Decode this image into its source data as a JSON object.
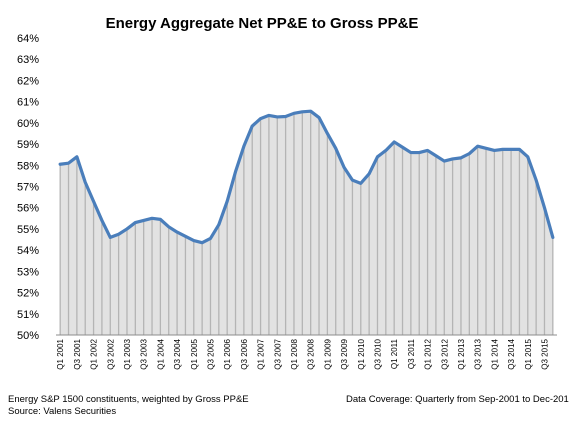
{
  "chart_data": {
    "type": "area",
    "title": "Energy Aggregate Net PP&E to Gross PP&E",
    "xlabel": "",
    "ylabel": "",
    "ylim": [
      50,
      64
    ],
    "y_ticks": [
      "64%",
      "63%",
      "62%",
      "61%",
      "60%",
      "59%",
      "58%",
      "57%",
      "56%",
      "55%",
      "54%",
      "53%",
      "52%",
      "51%",
      "50%"
    ],
    "x_tick_labels": [
      "Q1 2001",
      "Q3 2001",
      "Q1 2002",
      "Q3 2002",
      "Q1 2003",
      "Q3 2003",
      "Q1 2004",
      "Q3 2004",
      "Q1 2005",
      "Q3 2005",
      "Q1 2006",
      "Q3 2006",
      "Q1 2007",
      "Q3 2007",
      "Q1 2008",
      "Q3 2008",
      "Q1 2009",
      "Q3 2009",
      "Q1 2010",
      "Q3 2010",
      "Q1 2011",
      "Q3 2011",
      "Q1 2012",
      "Q3 2012",
      "Q1 2013",
      "Q3 2013",
      "Q1 2014",
      "Q3 2014",
      "Q1 2015",
      "Q3 2015"
    ],
    "grid": false,
    "series": [
      {
        "values": [
          58.05,
          58.1,
          58.4,
          57.2,
          56.3,
          55.4,
          54.6,
          54.75,
          55.0,
          55.3,
          55.4,
          55.5,
          55.45,
          55.1,
          54.85,
          54.65,
          54.45,
          54.35,
          54.55,
          55.2,
          56.3,
          57.7,
          58.9,
          59.85,
          60.2,
          60.35,
          60.28,
          60.3,
          60.45,
          60.52,
          60.55,
          60.25,
          59.5,
          58.8,
          57.9,
          57.3,
          57.15,
          57.6,
          58.4,
          58.7,
          59.1,
          58.85,
          58.6,
          58.6,
          58.7,
          58.45,
          58.2,
          58.3,
          58.35,
          58.55,
          58.9,
          58.8,
          58.7,
          58.75,
          58.75,
          58.75,
          58.4,
          57.3,
          56.0,
          54.6
        ]
      }
    ],
    "colors": {
      "line": "#4a7ebb",
      "area": "#e2e2e2",
      "area_lines": "#b4b4b4"
    }
  },
  "footnotes": {
    "left_line1": "Energy S&P 1500 constituents, weighted by Gross PP&E",
    "left_line2": "Source: Valens Securities",
    "right": "Data Coverage: Quarterly from Sep-2001 to Dec-201"
  }
}
